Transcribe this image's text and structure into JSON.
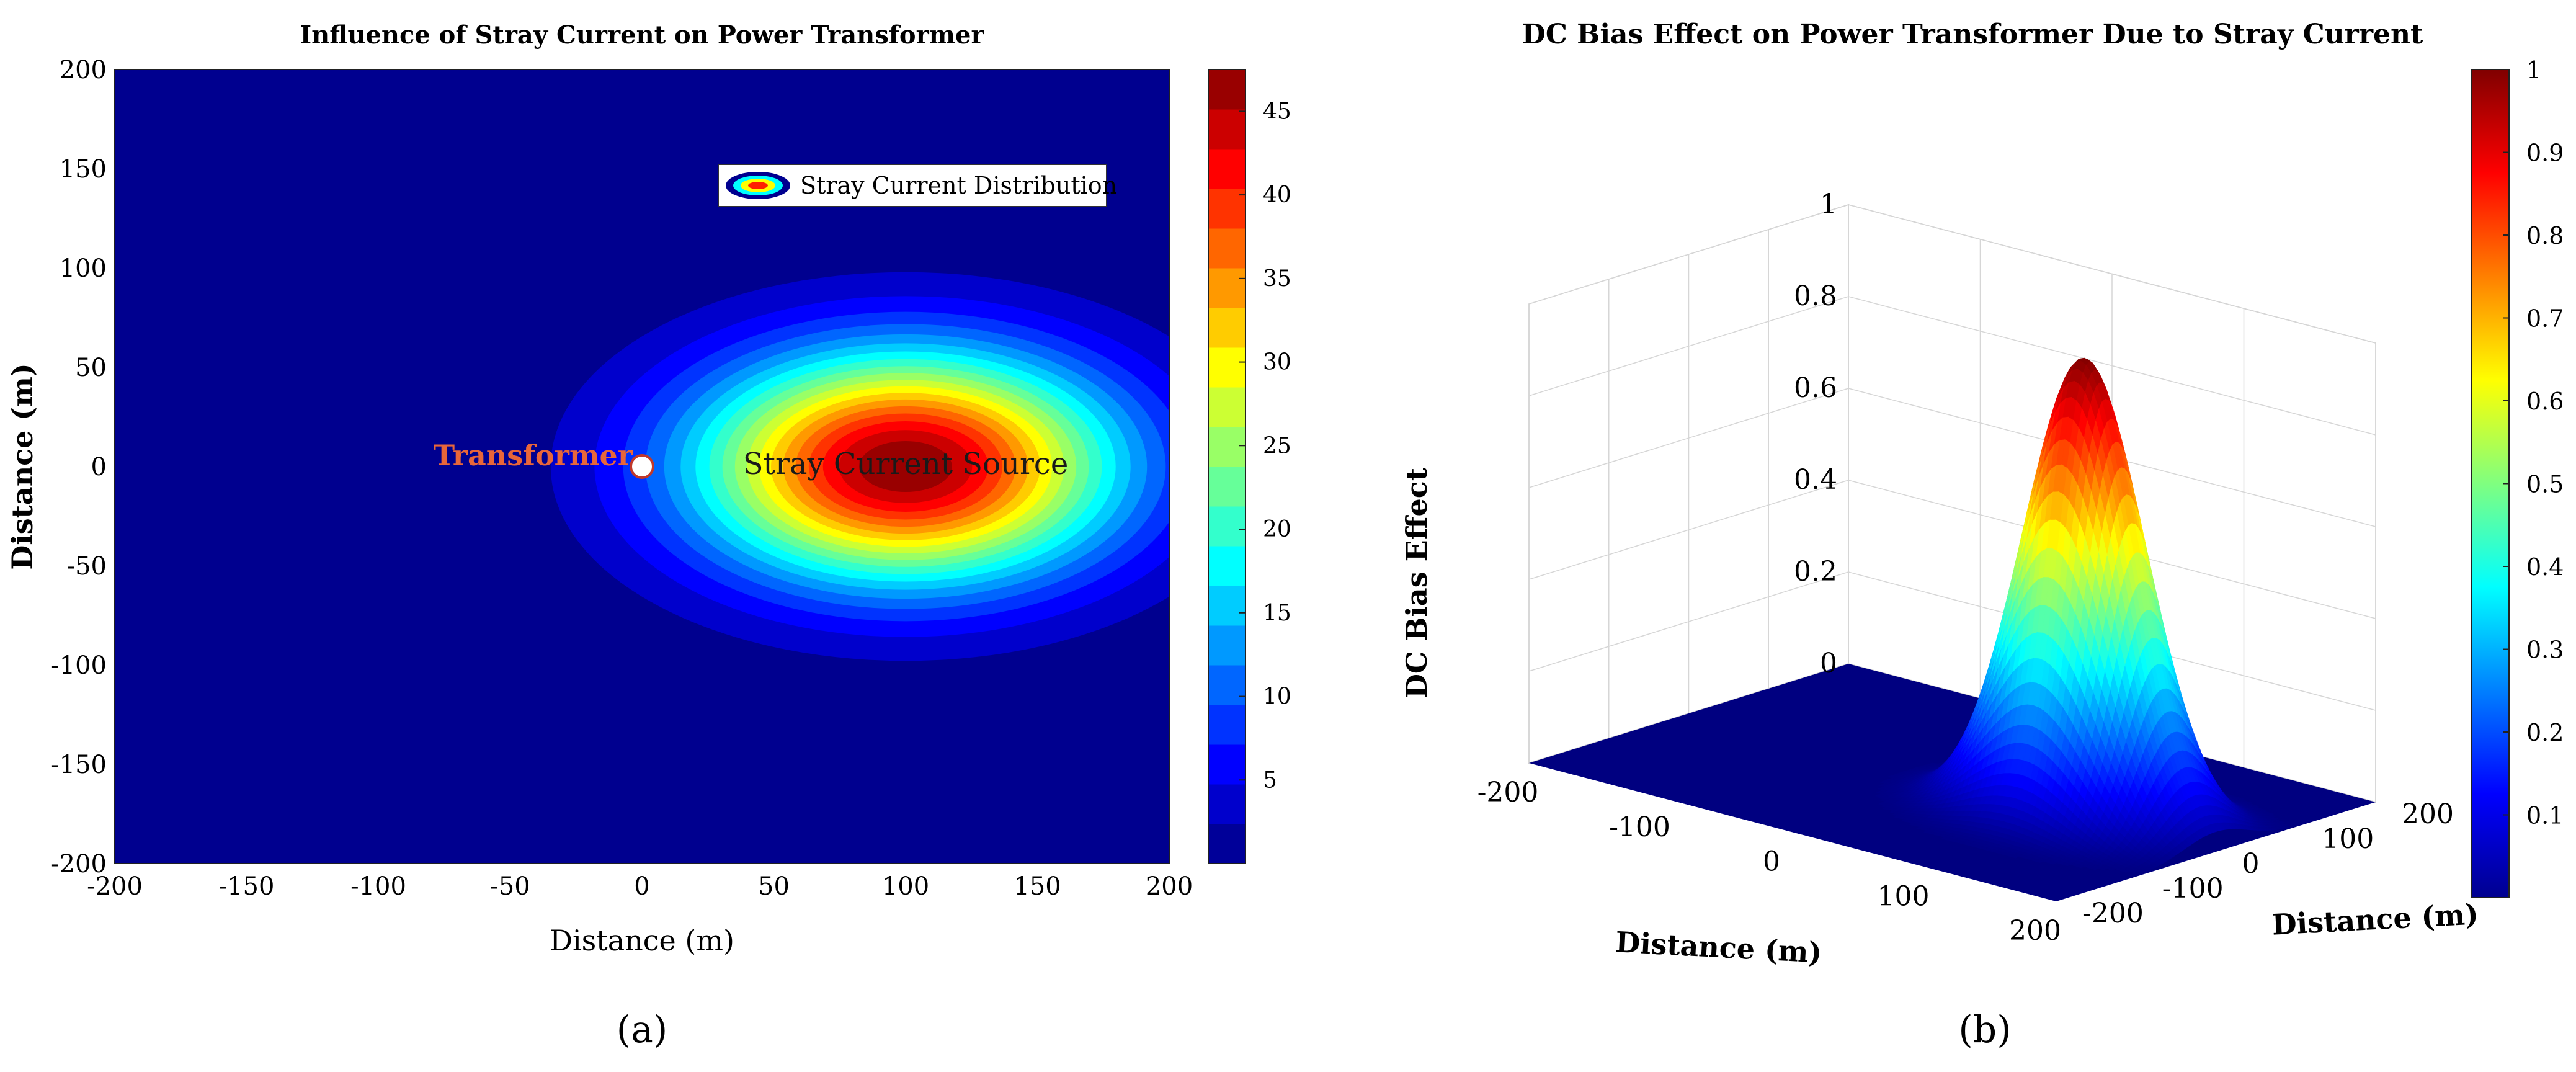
{
  "panels": [
    {
      "caption": "(a)",
      "chart_data": {
        "type": "heatmap",
        "title": "Influence of Stray Current on Power Transformer",
        "xlabel": "Distance (m)",
        "ylabel": "Distance (m)",
        "xlim": [
          -200,
          200
        ],
        "ylim": [
          -200,
          200
        ],
        "xticks": [
          -200,
          -150,
          -100,
          -50,
          0,
          50,
          100,
          150,
          200
        ],
        "yticks": [
          -200,
          -150,
          -100,
          -50,
          0,
          50,
          100,
          150,
          200
        ],
        "colorbar": {
          "ticks": [
            5,
            10,
            15,
            20,
            25,
            30,
            35,
            40,
            45
          ],
          "range": [
            0,
            47.5
          ]
        },
        "field": {
          "kind": "gaussian",
          "center": [
            100,
            0
          ],
          "peak": 47.5,
          "sigma_x": 55,
          "sigma_y": 40,
          "contour_levels": 20,
          "colormap": "jet"
        },
        "legend": {
          "entries": [
            "Stray Current Distribution"
          ],
          "position": "top-right"
        },
        "annotations": [
          {
            "text": "Transformer",
            "x": 0,
            "y": 0,
            "color": "#e8663a",
            "marker": "white-circle"
          },
          {
            "text": "Stray Current Source",
            "x": 100,
            "y": 0,
            "color": "#1a1a1a"
          }
        ]
      }
    },
    {
      "caption": "(b)",
      "chart_data": {
        "type": "surface",
        "title": "DC Bias Effect on Power Transformer Due to Stray Current",
        "xlabel": "Distance (m)",
        "ylabel": "Distance (m)",
        "zlabel": "DC Bias Effect",
        "xlim": [
          -200,
          200
        ],
        "ylim": [
          -200,
          200
        ],
        "zlim": [
          0,
          1
        ],
        "xticks": [
          -200,
          -100,
          0,
          100,
          200
        ],
        "yticks": [
          -200,
          -100,
          0,
          100,
          200
        ],
        "zticks": [
          0,
          0.2,
          0.4,
          0.6,
          0.8,
          1
        ],
        "colorbar": {
          "ticks": [
            0.1,
            0.2,
            0.3,
            0.4,
            0.5,
            0.6,
            0.7,
            0.8,
            0.9,
            1
          ],
          "range": [
            0,
            1
          ]
        },
        "field": {
          "kind": "gaussian",
          "center": [
            100,
            0
          ],
          "peak": 1,
          "sigma_x": 40,
          "sigma_y": 40,
          "colormap": "jet"
        }
      }
    }
  ]
}
